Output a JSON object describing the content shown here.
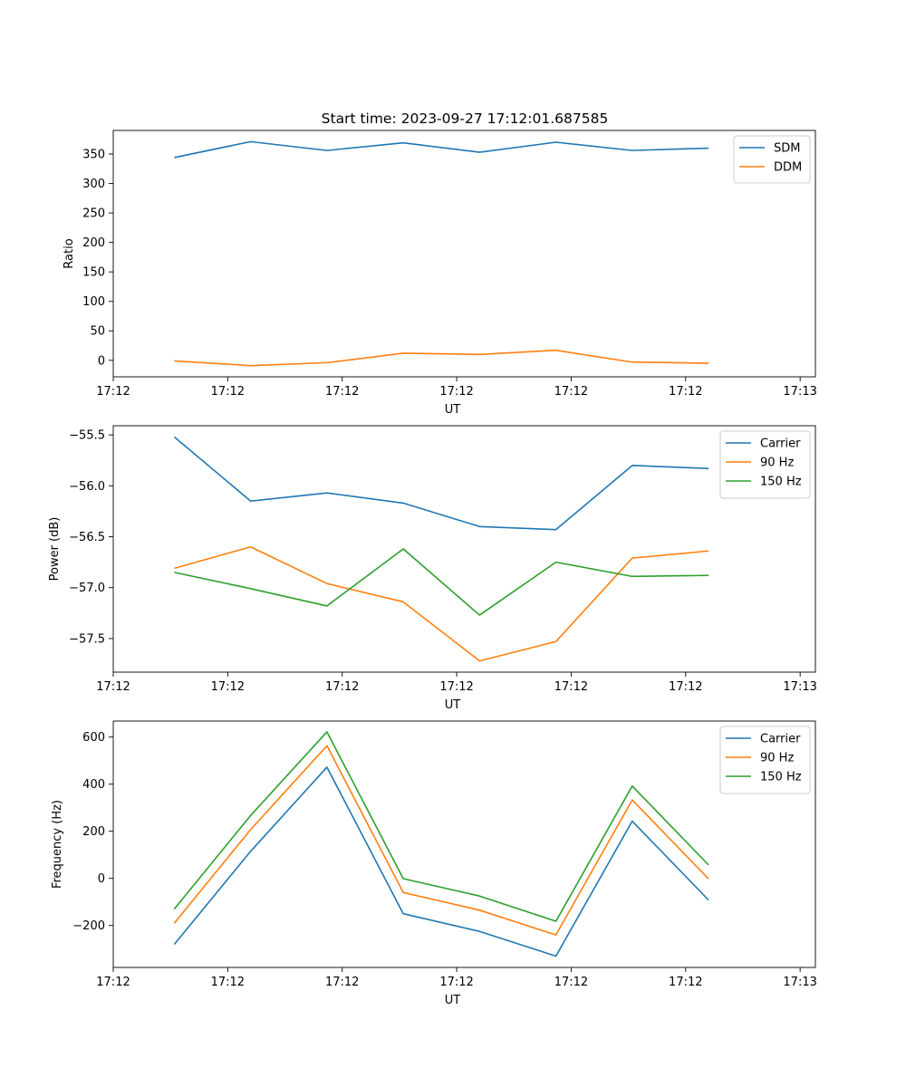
{
  "title": "Start time: 2023-09-27 17:12:01.687585",
  "colors": {
    "c0": "#1f77b4",
    "c1": "#ff7f0e",
    "c2": "#2ca02c"
  },
  "chart_data": [
    {
      "type": "line",
      "title": "Start time: 2023-09-27 17:12:01.687585",
      "xlabel": "UT",
      "ylabel": "Ratio",
      "x": [
        1,
        2,
        3,
        4,
        5,
        6,
        7,
        8
      ],
      "xlim": [
        0.2,
        9.4
      ],
      "xticks": [
        0.2,
        1.7,
        3.2,
        4.7,
        6.2,
        7.7,
        9.2
      ],
      "xtick_labels": [
        "17:12",
        "17:12",
        "17:12",
        "17:12",
        "17:12",
        "17:12",
        "17:13"
      ],
      "ylim": [
        -28,
        390
      ],
      "yticks": [
        0,
        50,
        100,
        150,
        200,
        250,
        300,
        350
      ],
      "ytick_labels": [
        "0",
        "50",
        "100",
        "150",
        "200",
        "250",
        "300",
        "350"
      ],
      "legend_position": "top-right",
      "series": [
        {
          "name": "SDM",
          "color": "#1f77b4",
          "values": [
            344,
            371,
            356,
            369,
            353,
            370,
            356,
            360
          ]
        },
        {
          "name": "DDM",
          "color": "#ff7f0e",
          "values": [
            -1,
            -9,
            -4,
            12,
            10,
            17,
            -3,
            -5
          ]
        }
      ]
    },
    {
      "type": "line",
      "title": "",
      "xlabel": "UT",
      "ylabel": "Power (dB)",
      "x": [
        1,
        2,
        3,
        4,
        5,
        6,
        7,
        8
      ],
      "xlim": [
        0.2,
        9.4
      ],
      "xticks": [
        0.2,
        1.7,
        3.2,
        4.7,
        6.2,
        7.7,
        9.2
      ],
      "xtick_labels": [
        "17:12",
        "17:12",
        "17:12",
        "17:12",
        "17:12",
        "17:12",
        "17:13"
      ],
      "ylim": [
        -57.83,
        -55.41
      ],
      "yticks": [
        -57.5,
        -57.0,
        -56.5,
        -56.0,
        -55.5
      ],
      "ytick_labels": [
        "−57.5",
        "−57.0",
        "−56.5",
        "−56.0",
        "−55.5"
      ],
      "legend_position": "top-right",
      "series": [
        {
          "name": "Carrier",
          "color": "#1f77b4",
          "values": [
            -55.52,
            -56.15,
            -56.07,
            -56.17,
            -56.4,
            -56.43,
            -55.8,
            -55.83
          ]
        },
        {
          "name": "90 Hz",
          "color": "#ff7f0e",
          "values": [
            -56.81,
            -56.6,
            -56.96,
            -57.14,
            -57.72,
            -57.53,
            -56.71,
            -56.64
          ]
        },
        {
          "name": "150 Hz",
          "color": "#2ca02c",
          "values": [
            -56.85,
            -57.01,
            -57.18,
            -56.62,
            -57.27,
            -56.75,
            -56.89,
            -56.88
          ]
        }
      ]
    },
    {
      "type": "line",
      "title": "",
      "xlabel": "UT",
      "ylabel": "Frequency (Hz)",
      "x": [
        1,
        2,
        3,
        4,
        5,
        6,
        7,
        8
      ],
      "xlim": [
        0.2,
        9.4
      ],
      "xticks": [
        0.2,
        1.7,
        3.2,
        4.7,
        6.2,
        7.7,
        9.2
      ],
      "xtick_labels": [
        "17:12",
        "17:12",
        "17:12",
        "17:12",
        "17:12",
        "17:12",
        "17:13"
      ],
      "ylim": [
        -378,
        668
      ],
      "yticks": [
        -200,
        0,
        200,
        400,
        600
      ],
      "ytick_labels": [
        "−200",
        "0",
        "200",
        "400",
        "600"
      ],
      "legend_position": "top-right",
      "series": [
        {
          "name": "Carrier",
          "color": "#1f77b4",
          "values": [
            -280,
            115,
            472,
            -150,
            -225,
            -330,
            243,
            -92
          ]
        },
        {
          "name": "90 Hz",
          "color": "#ff7f0e",
          "values": [
            -190,
            207,
            563,
            -60,
            -135,
            -240,
            333,
            -2
          ]
        },
        {
          "name": "150 Hz",
          "color": "#2ca02c",
          "values": [
            -130,
            267,
            622,
            -1,
            -75,
            -182,
            392,
            57
          ]
        }
      ]
    }
  ]
}
